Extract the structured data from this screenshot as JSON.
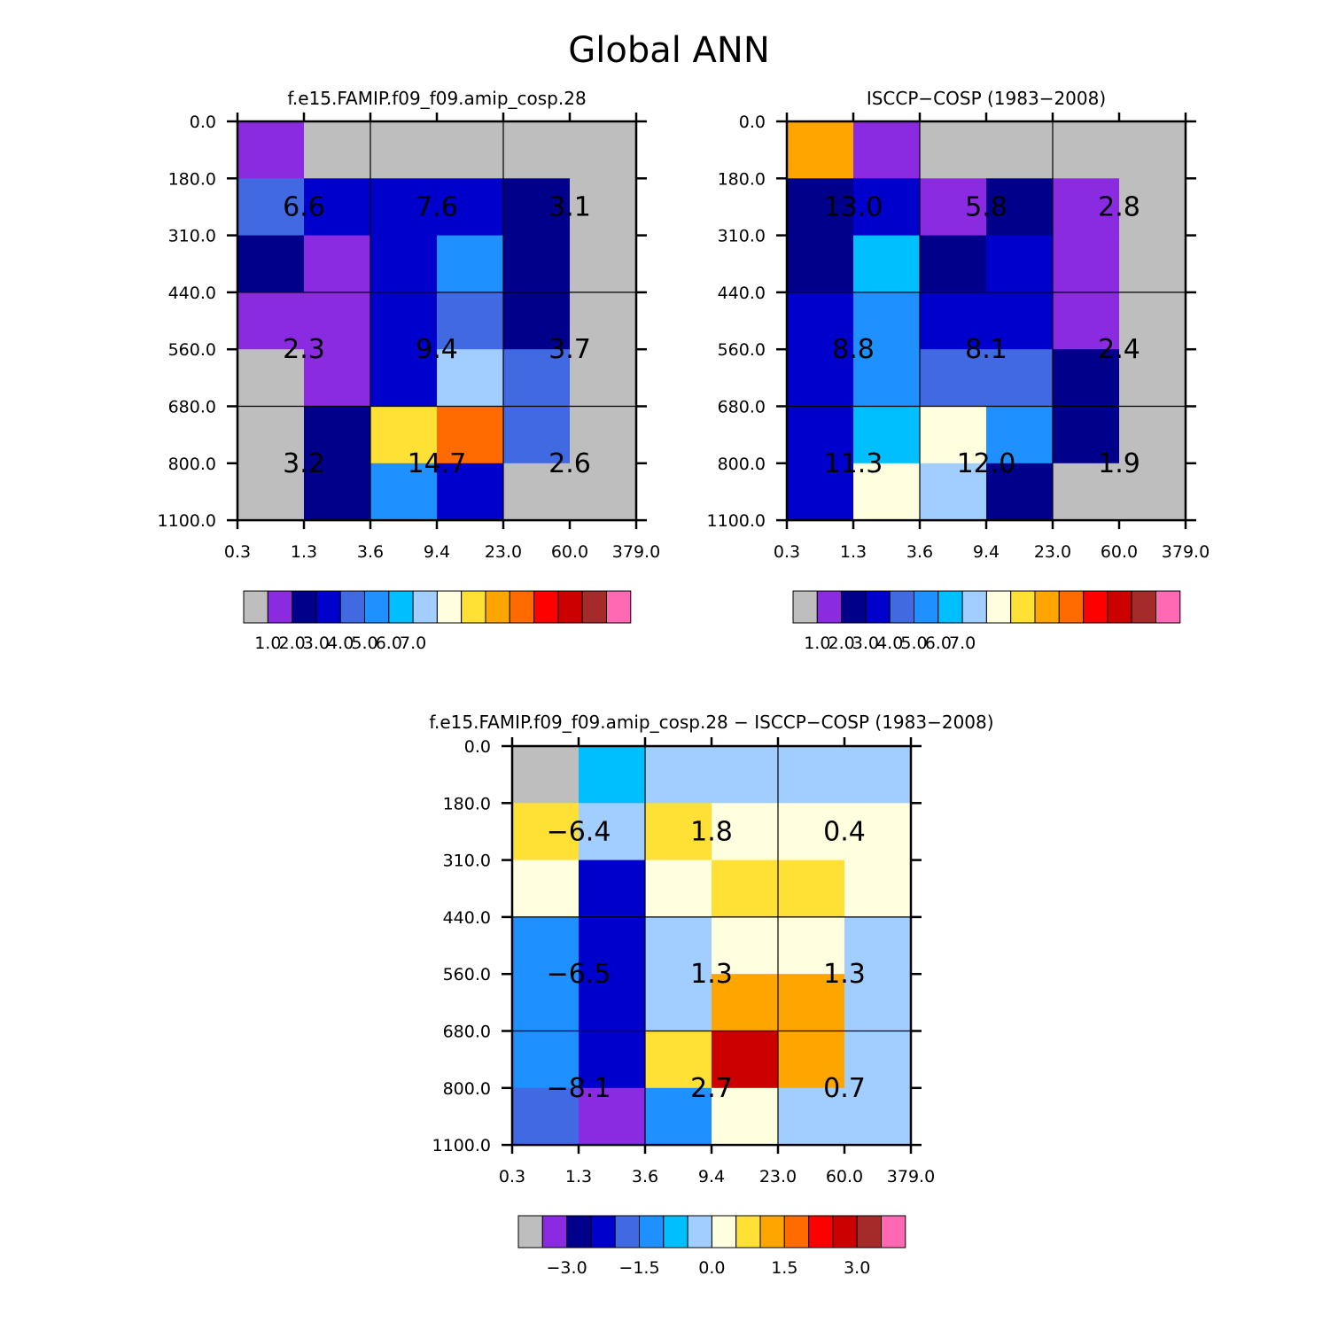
{
  "title": "Global ANN",
  "colors": {
    "abs": [
      "#bebebe",
      "#8a2be2",
      "#00008b",
      "#0000cd",
      "#4169e1",
      "#1e90ff",
      "#00bfff",
      "#a2cdff",
      "#ffffe0",
      "#ffe135",
      "#ffa500",
      "#ff6b00",
      "#ff0000",
      "#cd0000",
      "#a52a2a",
      "#ff69b4"
    ],
    "diff": [
      "#bebebe",
      "#8a2be2",
      "#00008b",
      "#0000cd",
      "#4169e1",
      "#1e90ff",
      "#00bfff",
      "#a2cdff",
      "#ffffe0",
      "#ffe135",
      "#ffa500",
      "#ff6b00",
      "#ff0000",
      "#cd0000",
      "#a52a2a",
      "#ff69b4"
    ]
  },
  "chart_data": [
    {
      "type": "heatmap",
      "title": "f.e15.FAMIP.f09_f09.amip_cosp.28",
      "x_ticks": [
        "0.3",
        "1.3",
        "3.6",
        "9.4",
        "23.0",
        "60.0",
        "379.0"
      ],
      "y_ticks": [
        "0.0",
        "180.0",
        "310.0",
        "440.0",
        "560.0",
        "680.0",
        "800.0",
        "1100.0"
      ],
      "cell_color_index": [
        [
          1,
          0,
          0,
          0,
          0,
          0
        ],
        [
          4,
          3,
          3,
          3,
          2,
          0
        ],
        [
          2,
          1,
          3,
          5,
          2,
          0
        ],
        [
          1,
          1,
          3,
          4,
          2,
          0
        ],
        [
          0,
          1,
          3,
          7,
          4,
          0
        ],
        [
          0,
          2,
          9,
          11,
          4,
          0
        ],
        [
          0,
          2,
          5,
          3,
          0,
          0
        ]
      ],
      "group_labels": [
        [
          "6.6",
          "7.6",
          "3.1"
        ],
        [
          "2.3",
          "9.4",
          "3.7"
        ],
        [
          "3.2",
          "14.7",
          "2.6"
        ]
      ],
      "colorbar_labels": [
        "1.0",
        "2.0",
        "3.0",
        "4.0",
        "5.0",
        "6.0",
        "7.0"
      ]
    },
    {
      "type": "heatmap",
      "title": "ISCCP-COSP (1983-2008)",
      "x_ticks": [
        "0.3",
        "1.3",
        "3.6",
        "9.4",
        "23.0",
        "60.0",
        "379.0"
      ],
      "y_ticks": [
        "0.0",
        "180.0",
        "310.0",
        "440.0",
        "560.0",
        "680.0",
        "800.0",
        "1100.0"
      ],
      "cell_color_index": [
        [
          10,
          1,
          0,
          0,
          0,
          0
        ],
        [
          2,
          3,
          1,
          2,
          1,
          0
        ],
        [
          2,
          6,
          2,
          3,
          1,
          0
        ],
        [
          3,
          5,
          3,
          3,
          1,
          0
        ],
        [
          3,
          5,
          4,
          4,
          2,
          0
        ],
        [
          3,
          6,
          8,
          5,
          2,
          0
        ],
        [
          3,
          8,
          7,
          2,
          0,
          0
        ]
      ],
      "group_labels": [
        [
          "13.0",
          "5.8",
          "2.8"
        ],
        [
          "8.8",
          "8.1",
          "2.4"
        ],
        [
          "11.3",
          "12.0",
          "1.9"
        ]
      ],
      "colorbar_labels": [
        "1.0",
        "2.0",
        "3.0",
        "4.0",
        "5.0",
        "6.0",
        "7.0"
      ]
    },
    {
      "type": "heatmap",
      "title": "f.e15.FAMIP.f09_f09.amip_cosp.28 - ISCCP-COSP (1983-2008)",
      "x_ticks": [
        "0.3",
        "1.3",
        "3.6",
        "9.4",
        "23.0",
        "60.0",
        "379.0"
      ],
      "y_ticks": [
        "0.0",
        "180.0",
        "310.0",
        "440.0",
        "560.0",
        "680.0",
        "800.0",
        "1100.0"
      ],
      "cell_color_index": [
        [
          0,
          6,
          7,
          7,
          7,
          7
        ],
        [
          9,
          7,
          9,
          8,
          8,
          8
        ],
        [
          8,
          3,
          8,
          9,
          9,
          8
        ],
        [
          5,
          3,
          7,
          8,
          8,
          7
        ],
        [
          5,
          3,
          7,
          10,
          10,
          7
        ],
        [
          5,
          3,
          9,
          13,
          10,
          7
        ],
        [
          4,
          1,
          5,
          8,
          7,
          7
        ]
      ],
      "group_labels": [
        [
          "-6.4",
          "1.8",
          "0.4"
        ],
        [
          "-6.5",
          "1.3",
          "1.3"
        ],
        [
          "-8.1",
          "2.7",
          "0.7"
        ]
      ],
      "colorbar_labels": [
        "-3.0",
        "-1.5",
        "0.0",
        "1.5",
        "3.0"
      ]
    }
  ]
}
